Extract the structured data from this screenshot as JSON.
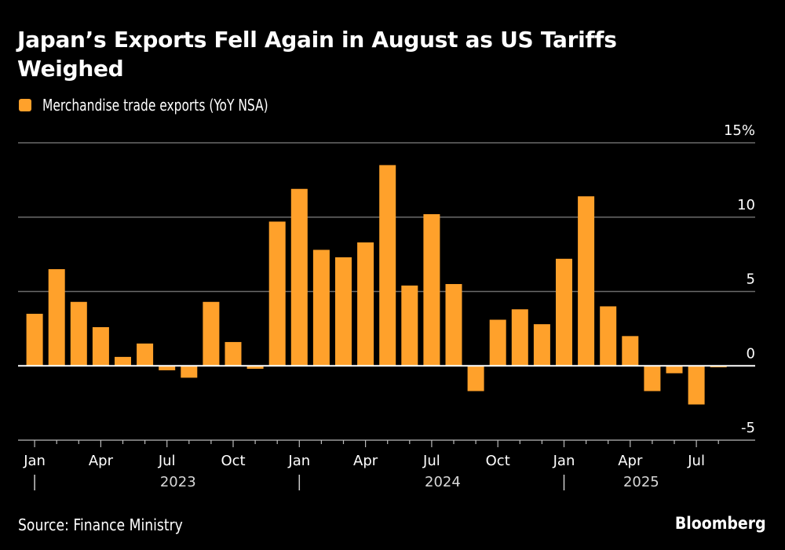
{
  "header": {
    "title": "Japan’s Exports Fell Again in August as US Tariffs Weighed"
  },
  "legend": {
    "label": "Merchandise trade exports (YoY NSA)",
    "color": "#FFA12B"
  },
  "footer": {
    "source": "Source: Finance Ministry",
    "brand": "Bloomberg"
  },
  "chart_data": {
    "type": "bar",
    "title": "Japan’s Exports Fell Again in August as US Tariffs Weighed",
    "xlabel": "",
    "ylabel": "",
    "ylim": [
      -5,
      15
    ],
    "yticks": [
      15,
      10,
      5,
      0,
      -5
    ],
    "ytick_labels": [
      "15%",
      "10",
      "5",
      "0",
      "-5"
    ],
    "grid": true,
    "legend_position": "top-left",
    "y_axis_side": "right",
    "bar_color": "#FFA12B",
    "categories": [
      "2023-01",
      "2023-02",
      "2023-03",
      "2023-04",
      "2023-05",
      "2023-06",
      "2023-07",
      "2023-08",
      "2023-09",
      "2023-10",
      "2023-11",
      "2023-12",
      "2024-01",
      "2024-02",
      "2024-03",
      "2024-04",
      "2024-05",
      "2024-06",
      "2024-07",
      "2024-08",
      "2024-09",
      "2024-10",
      "2024-11",
      "2024-12",
      "2025-01",
      "2025-02",
      "2025-03",
      "2025-04",
      "2025-05",
      "2025-06",
      "2025-07",
      "2025-08"
    ],
    "series": [
      {
        "name": "Merchandise trade exports (YoY NSA)",
        "values": [
          3.5,
          6.5,
          4.3,
          2.6,
          0.6,
          1.5,
          -0.3,
          -0.8,
          4.3,
          1.6,
          -0.2,
          9.7,
          11.9,
          7.8,
          7.3,
          8.3,
          13.5,
          5.4,
          10.2,
          5.5,
          -1.7,
          3.1,
          3.8,
          2.8,
          7.2,
          11.4,
          4.0,
          2.0,
          -1.7,
          -0.5,
          -2.6,
          -0.1
        ]
      }
    ],
    "x_tick_labels": [
      {
        "index": 0,
        "label": "Jan"
      },
      {
        "index": 3,
        "label": "Apr"
      },
      {
        "index": 6,
        "label": "Jul"
      },
      {
        "index": 9,
        "label": "Oct"
      },
      {
        "index": 12,
        "label": "Jan"
      },
      {
        "index": 15,
        "label": "Apr"
      },
      {
        "index": 18,
        "label": "Jul"
      },
      {
        "index": 21,
        "label": "Oct"
      },
      {
        "index": 24,
        "label": "Jan"
      },
      {
        "index": 27,
        "label": "Apr"
      },
      {
        "index": 30,
        "label": "Jul"
      }
    ],
    "year_labels": [
      {
        "center_index": 6.5,
        "label": "2023"
      },
      {
        "center_index": 18.5,
        "label": "2024"
      },
      {
        "center_index": 27.5,
        "label": "2025"
      }
    ],
    "year_separators": [
      0,
      12,
      24
    ]
  }
}
